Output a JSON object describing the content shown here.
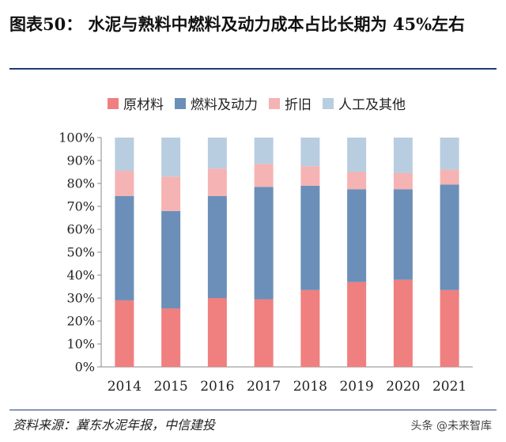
{
  "title": "图表50： 水泥与熟料中燃料及动力成本占比长期为 45%左右",
  "source": "资料来源：冀东水泥年报，中信建投",
  "watermark": "头条 @未来智库",
  "colors": {
    "raw": "#f07f7f",
    "fuel": "#6b8fb8",
    "depr": "#f5b3b3",
    "other": "#b9cde0"
  },
  "chart_data": {
    "type": "bar",
    "stacked": true,
    "categories": [
      "2014",
      "2015",
      "2016",
      "2017",
      "2018",
      "2019",
      "2020",
      "2021"
    ],
    "series": [
      {
        "name": "原材料",
        "values": [
          29,
          25.5,
          30,
          29.5,
          33.5,
          37,
          38,
          33.5
        ]
      },
      {
        "name": "燃料及动力",
        "values": [
          45.5,
          42.5,
          44.5,
          49,
          45.5,
          40.5,
          39.5,
          46
        ]
      },
      {
        "name": "折旧",
        "values": [
          11,
          15,
          12,
          10,
          8.5,
          7.5,
          7,
          6.5
        ]
      },
      {
        "name": "人工及其他",
        "values": [
          14.5,
          17,
          13.5,
          11.5,
          12.5,
          15,
          15.5,
          14
        ]
      }
    ],
    "ylim": [
      0,
      100
    ],
    "yticks": [
      "0%",
      "10%",
      "20%",
      "30%",
      "40%",
      "50%",
      "60%",
      "70%",
      "80%",
      "90%",
      "100%"
    ],
    "legend_position": "top",
    "grid": false
  }
}
